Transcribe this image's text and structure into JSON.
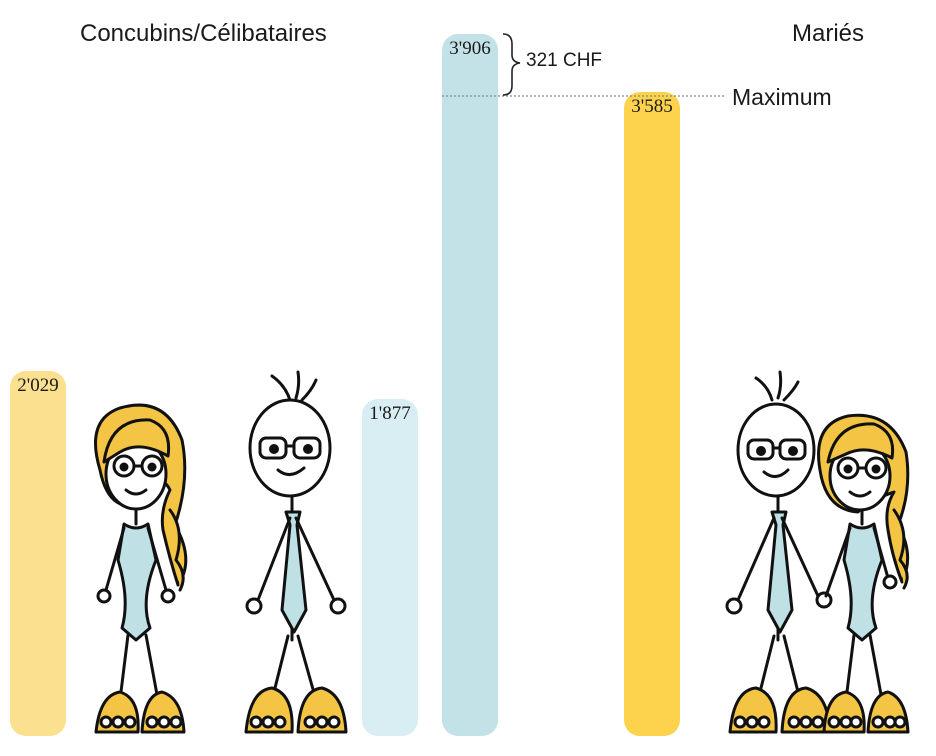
{
  "headings": {
    "left": "Concubins/Célibataires",
    "right": "Mariés"
  },
  "colors": {
    "yellow_light": "#fbe08f",
    "blue_light": "#d8eef2",
    "blue": "#c2e2e8",
    "yellow": "#fdd34e",
    "ink": "#111111",
    "hair": "#f4c544",
    "clothes": "#bfe1e6"
  },
  "figures": [
    "woman-figure",
    "man-figure",
    "couple-figure"
  ],
  "chart_data": {
    "type": "bar",
    "title": "",
    "xlabel": "",
    "ylabel": "",
    "ylim": [
      0,
      3906
    ],
    "grid": false,
    "series": [
      {
        "values": [
          2029,
          1877,
          3906,
          3585
        ]
      }
    ],
    "value_labels": [
      "2'029",
      "1'877",
      "3'906",
      "3'585"
    ],
    "annotations": {
      "difference": "321 CHF",
      "max_line_label": "Maximum"
    }
  }
}
